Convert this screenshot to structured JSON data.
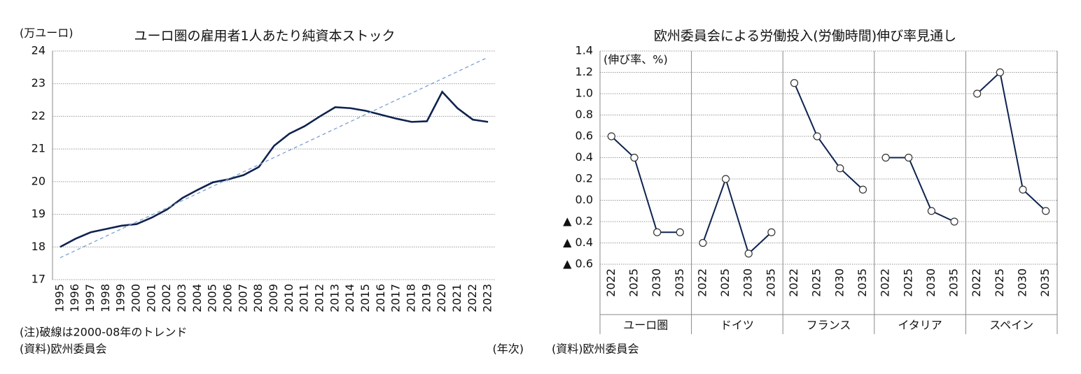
{
  "chart_data": [
    {
      "type": "line",
      "title": "ユーロ圏の雇用者1人あたり純資本ストック",
      "y_unit": "(万ユーロ)",
      "x_unit": "(年次)",
      "note": "(注)破線は2000-08年のトレンド",
      "source": "(資料)欧州委員会",
      "categories": [
        "1995",
        "1996",
        "1997",
        "1998",
        "1999",
        "2000",
        "2001",
        "2002",
        "2003",
        "2004",
        "2005",
        "2006",
        "2007",
        "2008",
        "2009",
        "2010",
        "2011",
        "2012",
        "2013",
        "2014",
        "2015",
        "2016",
        "2017",
        "2018",
        "2019",
        "2020",
        "2021",
        "2022",
        "2023"
      ],
      "series": [
        {
          "color": "#0f2350",
          "dash": false,
          "values": [
            18.0,
            18.25,
            18.45,
            18.55,
            18.65,
            18.7,
            18.9,
            19.15,
            19.5,
            19.75,
            19.98,
            20.07,
            20.2,
            20.45,
            21.1,
            21.47,
            21.7,
            22.0,
            22.28,
            22.25,
            22.17,
            22.05,
            21.93,
            21.83,
            21.85,
            22.75,
            22.25,
            21.9,
            21.83
          ]
        },
        {
          "color": "#7f9fcf",
          "dash": true,
          "values": [
            17.67,
            17.89,
            18.11,
            18.33,
            18.55,
            18.77,
            18.98,
            19.2,
            19.42,
            19.64,
            19.86,
            20.08,
            20.3,
            20.52,
            20.74,
            20.96,
            21.18,
            21.4,
            21.62,
            21.84,
            22.06,
            22.28,
            22.5,
            22.71,
            22.93,
            23.15,
            23.37,
            23.59,
            23.81
          ]
        }
      ],
      "ylim": [
        17,
        24
      ],
      "yticks": [
        17,
        18,
        19,
        20,
        21,
        22,
        23,
        24
      ],
      "grid": true
    },
    {
      "type": "grouped-line",
      "title": "欧州委員会による労働投入(労働時間)伸び率見通し",
      "y_unit": "(伸び率、%)",
      "source": "(資料)欧州委員会",
      "categories": [
        "2022",
        "2025",
        "2030",
        "2035"
      ],
      "color": "#0f2350",
      "groups": [
        {
          "name": "ユーロ圏",
          "values": [
            0.6,
            0.4,
            -0.3,
            -0.3
          ]
        },
        {
          "name": "ドイツ",
          "values": [
            -0.4,
            0.2,
            -0.5,
            -0.3
          ]
        },
        {
          "name": "フランス",
          "values": [
            1.1,
            0.6,
            0.3,
            0.1
          ]
        },
        {
          "name": "イタリア",
          "values": [
            0.4,
            0.4,
            -0.1,
            -0.2
          ]
        },
        {
          "name": "スペイン",
          "values": [
            1.0,
            1.2,
            0.1,
            -0.1
          ]
        }
      ],
      "ylim": [
        -0.6,
        1.4
      ],
      "yticks": [
        {
          "value": -0.6,
          "label": "▲ 0.6"
        },
        {
          "value": -0.4,
          "label": "▲ 0.4"
        },
        {
          "value": -0.2,
          "label": "▲ 0.2"
        },
        {
          "value": 0,
          "label": "0.0"
        },
        0.2,
        0.4,
        0.6,
        0.8,
        {
          "value": 1,
          "label": "1.0"
        },
        1.2,
        1.4
      ],
      "grid": true
    }
  ]
}
